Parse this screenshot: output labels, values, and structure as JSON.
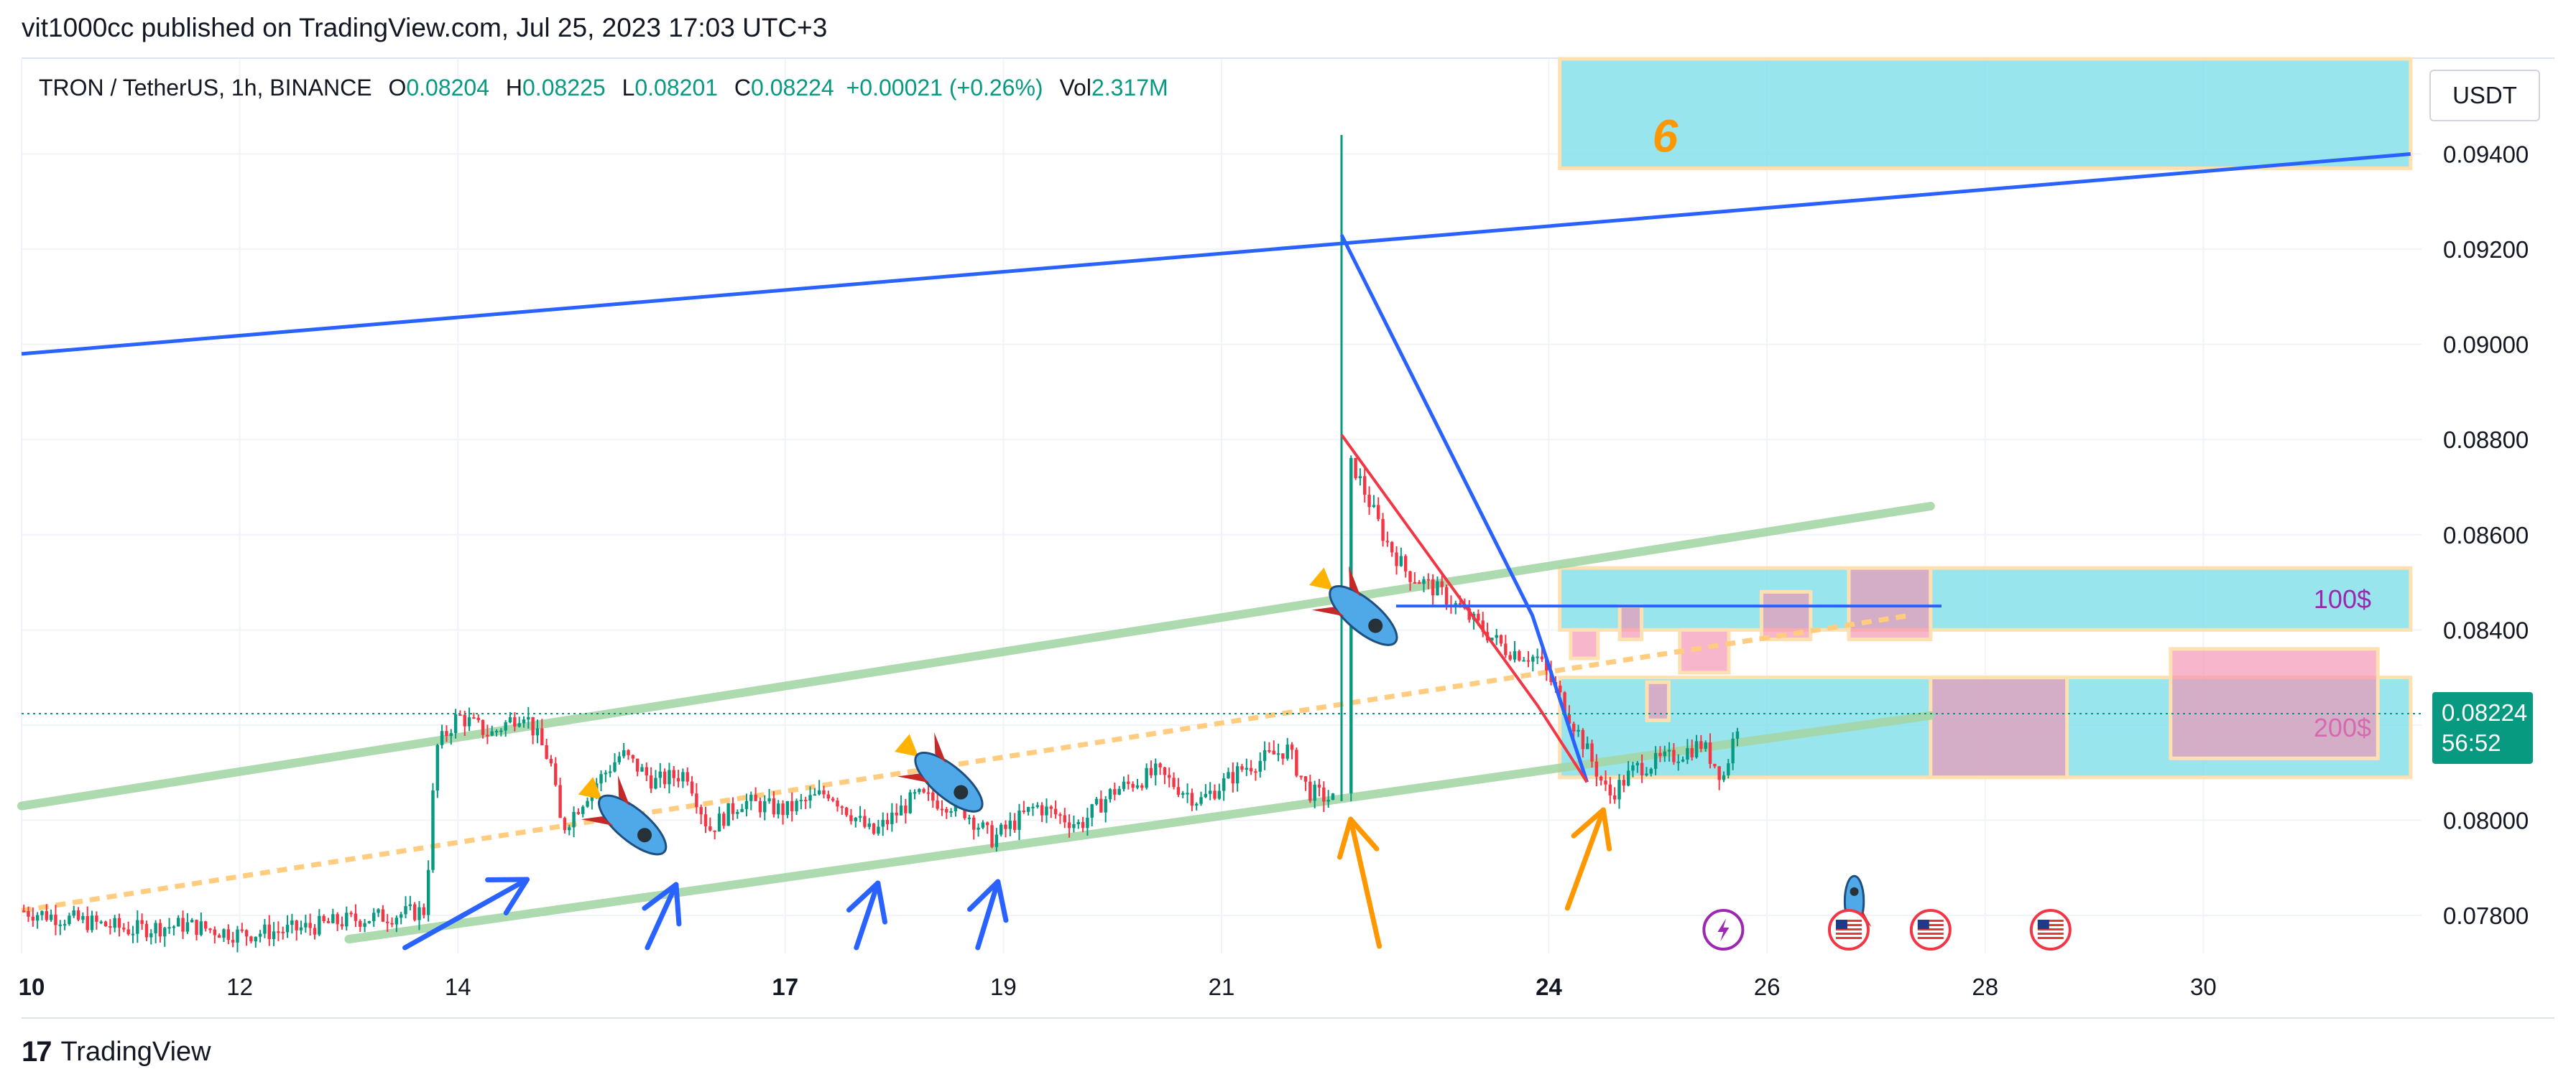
{
  "header": {
    "published": "vit1000cc published on TradingView.com, Jul 25, 2023 17:03 UTC+3"
  },
  "legend": {
    "symbol": "TRON / TetherUS, 1h, BINANCE",
    "o_label": "O",
    "o_value": "0.08204",
    "h_label": "H",
    "h_value": "0.08225",
    "l_label": "L",
    "l_value": "0.08201",
    "c_label": "C",
    "c_value": "0.08224",
    "change": "+0.00021 (+0.26%)",
    "vol_label": "Vol",
    "vol_value": "2.317M"
  },
  "currency_button": "USDT",
  "footer": {
    "brand": "TradingView",
    "logo": "17"
  },
  "colors": {
    "up": "#089981",
    "down": "#f23645",
    "blue_line": "#2962ff",
    "green_channel": "#a5d6a7",
    "zone_fill": "#80deea",
    "zone_border": "#ffe0b2",
    "pink_box": "#f48fb1",
    "orange_dash": "#ffcc80",
    "orange_arrow": "#ff9800",
    "red_line": "#f23645",
    "label_purple": "#9c27b0"
  },
  "chart_data": {
    "type": "candlestick",
    "symbol": "TRON / TetherUS",
    "interval": "1h",
    "exchange": "BINANCE",
    "y_axis": {
      "ticks": [
        "0.09400",
        "0.09200",
        "0.09000",
        "0.08800",
        "0.08600",
        "0.08400",
        "0.08200",
        "0.08000",
        "0.07800"
      ],
      "range": [
        0.0772,
        0.096
      ]
    },
    "x_axis": {
      "range_days": [
        10,
        32
      ],
      "ticks": [
        {
          "day": 10,
          "label": "10",
          "bold": true
        },
        {
          "day": 12,
          "label": "12",
          "bold": false
        },
        {
          "day": 14,
          "label": "14",
          "bold": false
        },
        {
          "day": 17,
          "label": "17",
          "bold": true
        },
        {
          "day": 19,
          "label": "19",
          "bold": false
        },
        {
          "day": 21,
          "label": "21",
          "bold": false
        },
        {
          "day": 24,
          "label": "24",
          "bold": true
        },
        {
          "day": 26,
          "label": "26",
          "bold": false
        },
        {
          "day": 28,
          "label": "28",
          "bold": false
        },
        {
          "day": 30,
          "label": "30",
          "bold": false
        }
      ]
    },
    "price_path": [
      [
        10.0,
        0.0781
      ],
      [
        10.5,
        0.0779
      ],
      [
        11.0,
        0.0777
      ],
      [
        11.5,
        0.0778
      ],
      [
        12.0,
        0.0776
      ],
      [
        12.5,
        0.0777
      ],
      [
        13.0,
        0.0779
      ],
      [
        13.4,
        0.078
      ],
      [
        13.7,
        0.0781
      ],
      [
        13.8,
        0.0815
      ],
      [
        14.0,
        0.0822
      ],
      [
        14.3,
        0.0818
      ],
      [
        14.6,
        0.0823
      ],
      [
        14.85,
        0.0812
      ],
      [
        14.95,
        0.0798
      ],
      [
        15.2,
        0.0806
      ],
      [
        15.5,
        0.0814
      ],
      [
        15.8,
        0.0808
      ],
      [
        16.1,
        0.081
      ],
      [
        16.3,
        0.0798
      ],
      [
        16.6,
        0.0804
      ],
      [
        17.0,
        0.0802
      ],
      [
        17.4,
        0.0806
      ],
      [
        17.8,
        0.0797
      ],
      [
        18.2,
        0.0805
      ],
      [
        18.6,
        0.0803
      ],
      [
        18.9,
        0.0796
      ],
      [
        19.3,
        0.0803
      ],
      [
        19.7,
        0.0799
      ],
      [
        20.0,
        0.0806
      ],
      [
        20.4,
        0.081
      ],
      [
        20.8,
        0.0804
      ],
      [
        21.2,
        0.0811
      ],
      [
        21.6,
        0.0815
      ],
      [
        21.8,
        0.0806
      ],
      [
        22.05,
        0.0804
      ],
      [
        22.1,
        0.087
      ],
      [
        22.2,
        0.0875
      ],
      [
        22.35,
        0.0867
      ],
      [
        22.5,
        0.0859
      ],
      [
        22.7,
        0.0852
      ],
      [
        23.0,
        0.0848
      ],
      [
        23.3,
        0.0842
      ],
      [
        23.6,
        0.0836
      ],
      [
        23.9,
        0.0834
      ],
      [
        24.1,
        0.0826
      ],
      [
        24.3,
        0.0817
      ],
      [
        24.55,
        0.0805
      ],
      [
        24.8,
        0.0811
      ],
      [
        25.1,
        0.0813
      ],
      [
        25.4,
        0.0816
      ],
      [
        25.6,
        0.0809
      ],
      [
        25.75,
        0.0822
      ]
    ],
    "spike": {
      "day": 22.1,
      "high": 0.0944,
      "low": 0.0804
    },
    "last_price": {
      "value": "0.08224",
      "countdown": "56:52"
    },
    "drawings": {
      "blue_trendline": {
        "from": [
          10.0,
          0.0898
        ],
        "to": [
          31.9,
          0.094
        ]
      },
      "blue_wedge": [
        [
          22.1,
          0.0923
        ],
        [
          23.85,
          0.0843
        ],
        [
          24.35,
          0.0808
        ]
      ],
      "red_wedge": [
        [
          22.1,
          0.0881
        ],
        [
          23.9,
          0.0824
        ],
        [
          24.35,
          0.0808
        ]
      ],
      "blue_horizontal": {
        "from": 22.6,
        "to": 27.6,
        "price": 0.0845
      },
      "green_channel_upper": {
        "from": [
          10.0,
          0.0803
        ],
        "to": [
          27.5,
          0.0866
        ]
      },
      "green_channel_lower": {
        "from": [
          13.0,
          0.0775
        ],
        "to": [
          27.5,
          0.0822
        ]
      },
      "orange_dashed": {
        "from": [
          10.0,
          0.0781
        ],
        "to": [
          27.3,
          0.0843
        ]
      },
      "zones": [
        {
          "from": 24.1,
          "to": 31.9,
          "top": 0.0968,
          "bottom": 0.0937,
          "label": "6"
        },
        {
          "from": 24.1,
          "to": 31.9,
          "top": 0.0853,
          "bottom": 0.084,
          "label": "100$"
        },
        {
          "from": 24.1,
          "to": 31.9,
          "top": 0.083,
          "bottom": 0.0809,
          "label": "200$"
        }
      ],
      "pink_boxes": [
        [
          24.2,
          24.45,
          0.084,
          0.0834
        ],
        [
          24.65,
          24.85,
          0.0845,
          0.0838
        ],
        [
          24.9,
          25.1,
          0.0829,
          0.0821
        ],
        [
          25.2,
          25.65,
          0.084,
          0.0831
        ],
        [
          25.95,
          26.4,
          0.0848,
          0.0838
        ],
        [
          26.75,
          27.5,
          0.0853,
          0.0838
        ],
        [
          27.5,
          28.75,
          0.083,
          0.0809
        ],
        [
          29.7,
          31.6,
          0.0836,
          0.0813
        ]
      ],
      "blue_arrows": [
        14.7,
        16.0,
        17.85,
        18.95
      ],
      "orange_arrows": [
        22.15,
        24.5
      ],
      "rockets": [
        [
          15.6,
          0.0799
        ],
        [
          18.5,
          0.0808
        ],
        [
          22.3,
          0.0843
        ],
        [
          26.8,
          0.0783
        ]
      ],
      "event_icons": [
        [
          25.6,
          "lightning"
        ],
        [
          26.75,
          "flag"
        ],
        [
          27.5,
          "flag"
        ],
        [
          28.6,
          "flag"
        ]
      ]
    }
  }
}
